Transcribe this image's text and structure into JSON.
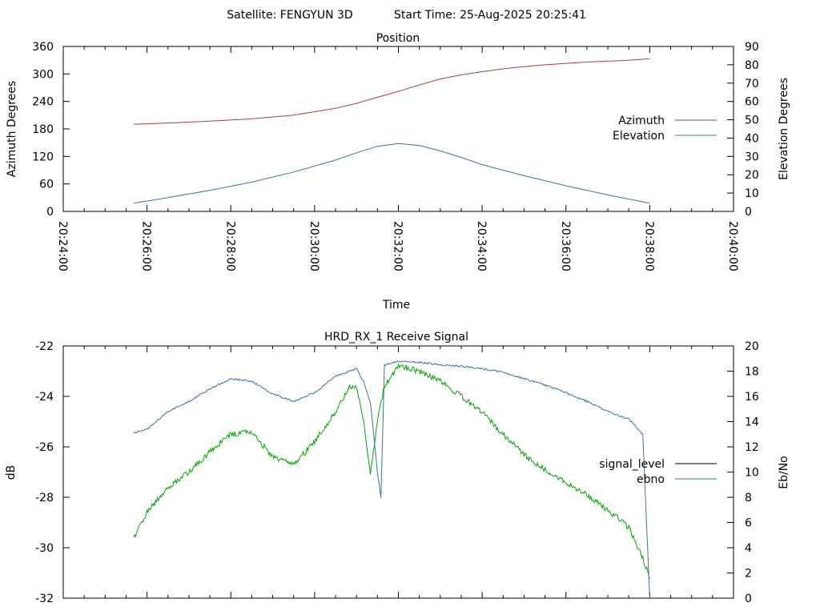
{
  "header": {
    "satellite": "Satellite: FENGYUN 3D",
    "start_time": "Start Time: 25-Aug-2025 20:25:41"
  },
  "chart_data": [
    {
      "type": "line",
      "title": "Position",
      "xlabel": "Time",
      "ylabel": "Azimuth Degrees",
      "y2label": "Elevation Degrees",
      "xlim": [
        "20:24:00",
        "20:40:00"
      ],
      "ylim": [
        0,
        360
      ],
      "y2lim": [
        0,
        90
      ],
      "xticks": [
        "20:24:00",
        "20:26:00",
        "20:28:00",
        "20:30:00",
        "20:32:00",
        "20:34:00",
        "20:36:00",
        "20:38:00",
        "20:40:00"
      ],
      "yticks": [
        "0",
        "60",
        "120",
        "180",
        "240",
        "300",
        "360"
      ],
      "y2ticks": [
        "0",
        "10",
        "20",
        "30",
        "40",
        "50",
        "60",
        "70",
        "80",
        "90"
      ],
      "legend_position": "right",
      "grid": false,
      "series": [
        {
          "name": "Azimuth",
          "axis": "left",
          "color": "#b03a3a",
          "x": [
            "20:25:41",
            "20:26:30",
            "20:27:30",
            "20:28:30",
            "20:29:30",
            "20:30:30",
            "20:31:00",
            "20:31:30",
            "20:32:00",
            "20:32:30",
            "20:33:00",
            "20:33:30",
            "20:34:00",
            "20:34:30",
            "20:35:00",
            "20:35:30",
            "20:36:30",
            "20:37:30",
            "20:38:00"
          ],
          "y": [
            190,
            193,
            197,
            202,
            210,
            225,
            236,
            249,
            262,
            276,
            289,
            298,
            305,
            311,
            316,
            320,
            326,
            330,
            333
          ]
        },
        {
          "name": "Elevation",
          "axis": "right",
          "color": "#3f6fa5",
          "x": [
            "20:25:41",
            "20:26:30",
            "20:27:30",
            "20:28:30",
            "20:29:30",
            "20:30:30",
            "20:31:00",
            "20:31:30",
            "20:32:00",
            "20:32:30",
            "20:33:00",
            "20:33:30",
            "20:34:00",
            "20:35:00",
            "20:36:00",
            "20:37:00",
            "20:38:00"
          ],
          "y": [
            4.5,
            7.5,
            11.5,
            16,
            21.5,
            28,
            32,
            35.5,
            37,
            36,
            33,
            29.5,
            25.5,
            19.5,
            14,
            9,
            4.5
          ]
        }
      ]
    },
    {
      "type": "line",
      "title": "HRD_RX_1 Receive Signal",
      "ylabel": "dB",
      "y2label": "Eb/No",
      "ylim": [
        -32,
        -22
      ],
      "y2lim": [
        0,
        20
      ],
      "yticks": [
        "-22",
        "-24",
        "-26",
        "-28",
        "-30",
        "-32"
      ],
      "y2ticks": [
        "0",
        "2",
        "4",
        "6",
        "8",
        "10",
        "12",
        "14",
        "16",
        "18",
        "20"
      ],
      "legend_position": "right",
      "grid": false,
      "series": [
        {
          "name": "signal_level",
          "axis": "left",
          "color": "#000000",
          "line_color": "#00a800",
          "x": [
            "20:25:41",
            "20:26:00",
            "20:26:30",
            "20:27:00",
            "20:27:30",
            "20:28:00",
            "20:28:30",
            "20:29:00",
            "20:29:30",
            "20:30:00",
            "20:30:30",
            "20:30:50",
            "20:31:00",
            "20:31:10",
            "20:31:20",
            "20:31:30",
            "20:31:40",
            "20:32:00",
            "20:32:30",
            "20:33:00",
            "20:33:30",
            "20:34:00",
            "20:34:30",
            "20:35:00",
            "20:35:30",
            "20:36:00",
            "20:36:30",
            "20:37:00",
            "20:37:30",
            "20:37:50",
            "20:38:00"
          ],
          "y": [
            -29.6,
            -28.6,
            -27.6,
            -27.0,
            -26.2,
            -25.5,
            -25.4,
            -26.4,
            -26.7,
            -25.8,
            -24.6,
            -23.6,
            -23.6,
            -25.0,
            -27.0,
            -25.0,
            -23.6,
            -22.8,
            -23.0,
            -23.4,
            -24.0,
            -24.6,
            -25.5,
            -26.3,
            -26.9,
            -27.4,
            -27.9,
            -28.5,
            -29.2,
            -30.4,
            -31.2
          ]
        },
        {
          "name": "ebno",
          "axis": "right",
          "color": "#3f6fa5",
          "x": [
            "20:25:41",
            "20:26:00",
            "20:26:30",
            "20:27:00",
            "20:27:30",
            "20:28:00",
            "20:28:30",
            "20:29:00",
            "20:29:30",
            "20:30:00",
            "20:30:30",
            "20:31:00",
            "20:31:10",
            "20:31:20",
            "20:31:30",
            "20:31:35",
            "20:31:40",
            "20:32:00",
            "20:32:30",
            "20:33:00",
            "20:33:30",
            "20:34:00",
            "20:34:30",
            "20:35:00",
            "20:35:30",
            "20:36:00",
            "20:36:30",
            "20:37:00",
            "20:37:30",
            "20:37:50",
            "20:38:00"
          ],
          "y": [
            13.1,
            13.4,
            14.8,
            15.6,
            16.6,
            17.4,
            17.2,
            16.2,
            15.6,
            16.3,
            17.6,
            18.2,
            17.2,
            15.5,
            10.0,
            8.0,
            18.5,
            18.8,
            18.7,
            18.5,
            18.4,
            18.2,
            17.9,
            17.4,
            16.9,
            16.3,
            15.6,
            14.8,
            14.2,
            13.0,
            0
          ]
        }
      ]
    }
  ]
}
